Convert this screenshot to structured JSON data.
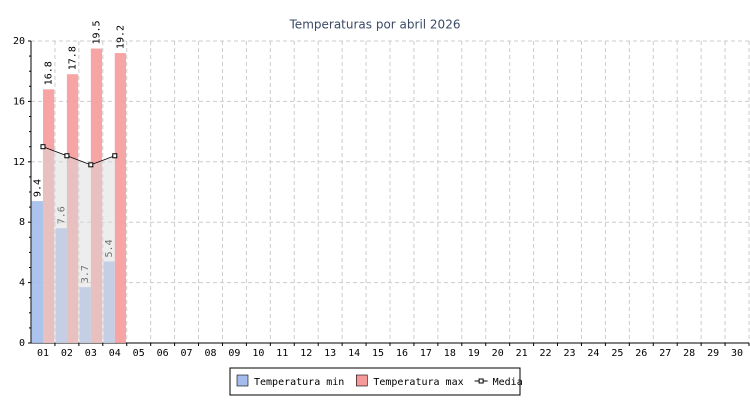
{
  "chart_data": {
    "type": "bar",
    "title": "Temperaturas por abril 2026",
    "categories": [
      "01",
      "02",
      "03",
      "04",
      "05",
      "06",
      "07",
      "08",
      "09",
      "10",
      "11",
      "12",
      "13",
      "14",
      "15",
      "16",
      "17",
      "18",
      "19",
      "20",
      "21",
      "22",
      "23",
      "24",
      "25",
      "26",
      "27",
      "28",
      "29",
      "30"
    ],
    "series": [
      {
        "name": "Temperatura min",
        "color": "#a3bcec",
        "type": "bar",
        "values": [
          9.4,
          7.6,
          3.7,
          5.4,
          null,
          null,
          null,
          null,
          null,
          null,
          null,
          null,
          null,
          null,
          null,
          null,
          null,
          null,
          null,
          null,
          null,
          null,
          null,
          null,
          null,
          null,
          null,
          null,
          null,
          null
        ]
      },
      {
        "name": "Temperatura max",
        "color": "#f59a9a",
        "type": "bar",
        "values": [
          16.8,
          17.8,
          19.5,
          19.2,
          null,
          null,
          null,
          null,
          null,
          null,
          null,
          null,
          null,
          null,
          null,
          null,
          null,
          null,
          null,
          null,
          null,
          null,
          null,
          null,
          null,
          null,
          null,
          null,
          null,
          null
        ]
      },
      {
        "name": "Media",
        "color": "#000000",
        "type": "line",
        "values": [
          13.0,
          12.4,
          11.8,
          12.4,
          null,
          null,
          null,
          null,
          null,
          null,
          null,
          null,
          null,
          null,
          null,
          null,
          null,
          null,
          null,
          null,
          null,
          null,
          null,
          null,
          null,
          null,
          null,
          null,
          null,
          null
        ]
      }
    ],
    "ylim": [
      0,
      20
    ],
    "yticks": [
      0,
      4,
      8,
      12,
      16,
      20
    ],
    "grid": true,
    "legend": "bottom"
  }
}
